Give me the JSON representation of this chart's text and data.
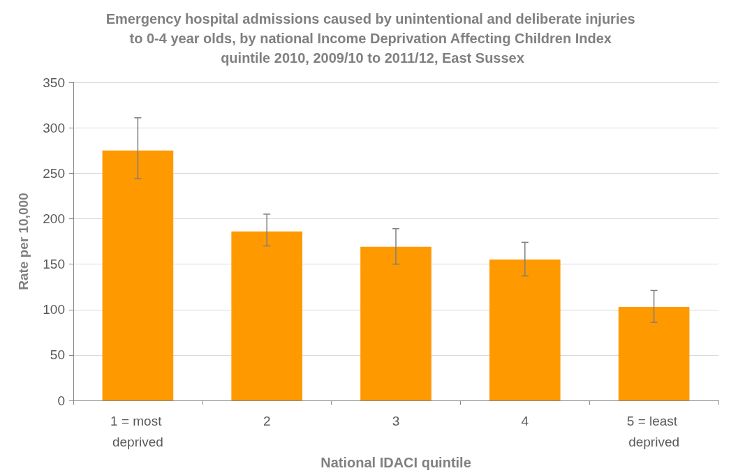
{
  "chart_data": {
    "type": "bar",
    "title": "Emergency hospital admissions caused by unintentional and deliberate injuries to 0-4 year olds, by national Income Deprivation Affecting Children Index quintile 2010, 2009/10 to 2011/12, East Sussex",
    "xlabel": "National IDACI quintile",
    "ylabel": "Rate per 10,000",
    "categories": [
      "1 = most deprived",
      "2",
      "3",
      "4",
      "5 = least deprived"
    ],
    "values": [
      275,
      186,
      169,
      155,
      103
    ],
    "errors": [
      [
        244,
        311
      ],
      [
        170,
        205
      ],
      [
        150,
        189
      ],
      [
        137,
        174
      ],
      [
        86,
        121
      ]
    ],
    "color": "#ff9900",
    "ylim": [
      0,
      350
    ],
    "yticks": [
      0,
      50,
      100,
      150,
      200,
      250,
      300,
      350
    ],
    "grid": "y"
  }
}
